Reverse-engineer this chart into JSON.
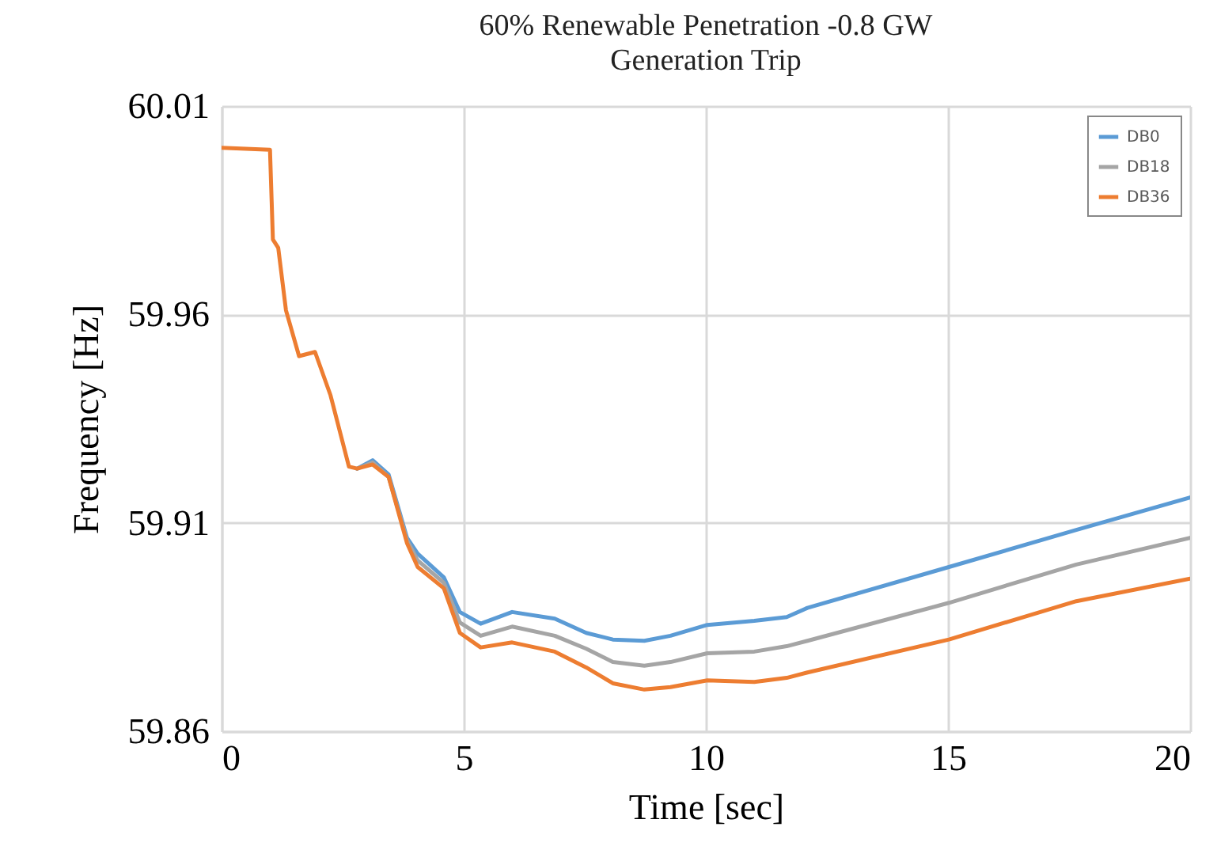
{
  "chart_data": {
    "type": "line",
    "title": "60% Renewable Penetration -0.8 GW\nGeneration Trip",
    "xlabel": "Time [sec]",
    "ylabel": "Frequency [Hz]",
    "x": [
      0,
      1.0,
      1.06,
      1.17,
      1.33,
      1.6,
      1.93,
      2.25,
      2.63,
      2.8,
      3.12,
      3.45,
      3.83,
      4.05,
      4.59,
      4.92,
      5.35,
      6.0,
      6.88,
      7.53,
      8.08,
      8.73,
      9.27,
      10.03,
      11.0,
      11.67,
      12.1,
      15.02,
      17.65,
      20
    ],
    "series": [
      {
        "name": "DB0",
        "color": "#5b9bd5",
        "values": [
          null,
          null,
          null,
          null,
          null,
          null,
          null,
          null,
          null,
          59.923,
          59.925,
          59.9216,
          59.9064,
          59.9026,
          59.8969,
          59.8886,
          59.8858,
          59.8886,
          59.887,
          59.8836,
          59.882,
          59.8817,
          59.8829,
          59.8855,
          59.8865,
          59.8874,
          59.8896,
          59.8994,
          59.9083,
          59.9161
        ]
      },
      {
        "name": "DB18",
        "color": "#a5a5a5",
        "values": [
          null,
          null,
          null,
          null,
          null,
          null,
          null,
          null,
          null,
          59.923,
          59.9245,
          59.921,
          59.9058,
          59.901,
          59.8956,
          59.8861,
          59.8829,
          59.8851,
          59.8829,
          59.8798,
          59.8766,
          59.8757,
          59.8766,
          59.8787,
          59.8791,
          59.8804,
          59.8817,
          59.8908,
          59.9,
          59.9064
        ]
      },
      {
        "name": "DB36",
        "color": "#ed7d31",
        "values": [
          60.0,
          59.9995,
          59.978,
          59.976,
          59.961,
          59.95,
          59.951,
          59.9406,
          59.9235,
          59.923,
          59.924,
          59.921,
          59.9051,
          59.8994,
          59.8943,
          59.8836,
          59.8801,
          59.8813,
          59.8791,
          59.8753,
          59.8715,
          59.87,
          59.8706,
          59.8722,
          59.8718,
          59.8728,
          59.8741,
          59.882,
          59.8912,
          59.8966
        ]
      }
    ],
    "xlim": [
      0,
      20
    ],
    "xticks": [
      0,
      5,
      10,
      15,
      20
    ],
    "ylim": [
      59.86,
      60.01
    ],
    "yticks": [
      59.86,
      59.91,
      59.96,
      60.01
    ],
    "grid": true,
    "legend": "top right",
    "marker": "none",
    "line_style": "solid"
  }
}
